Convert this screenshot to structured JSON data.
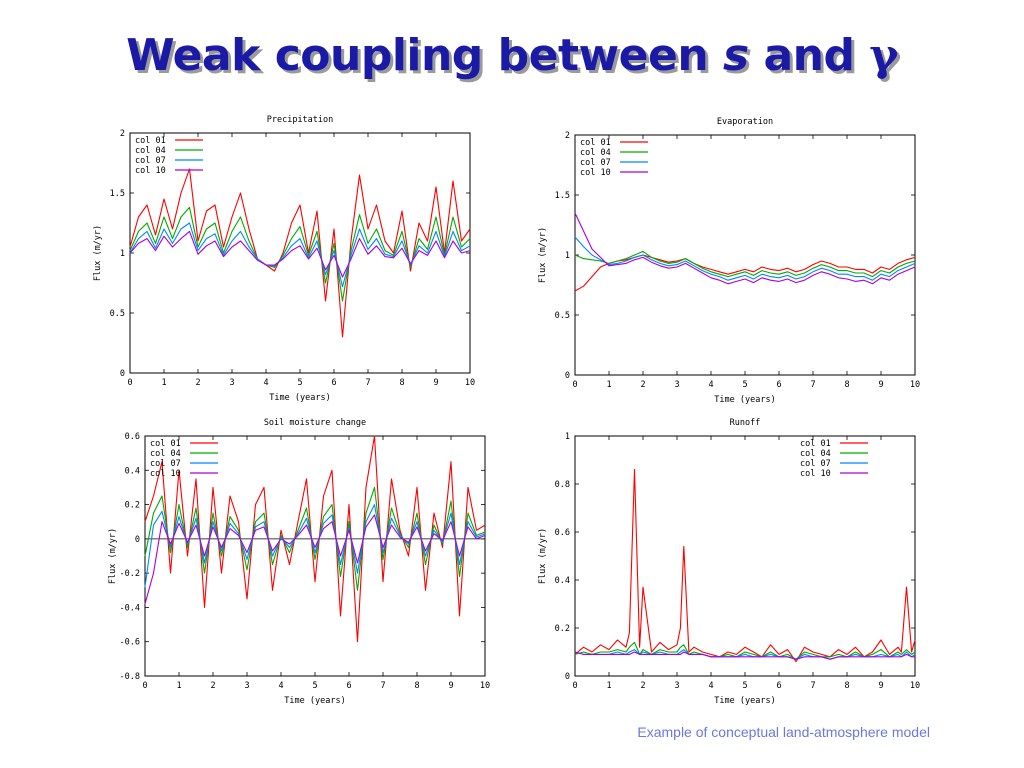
{
  "title": {
    "main": "Weak coupling between ",
    "symbol1": "s",
    "connector": " and ",
    "symbol2": "γ"
  },
  "caption": "Example of conceptual land-atmosphere model",
  "series_colors": {
    "col 01": "#ff0000",
    "col 04": "#00aa00",
    "col 07": "#0088ff",
    "col 10": "#aa00dd"
  },
  "chart_data": [
    {
      "type": "line",
      "title": "Precipitation",
      "xlabel": "Time (years)",
      "ylabel": "Flux (m/yr)",
      "xlim": [
        0,
        10
      ],
      "ylim": [
        0,
        2
      ],
      "xticks": [
        "0",
        "1",
        "2",
        "3",
        "4",
        "5",
        "6",
        "7",
        "8",
        "9",
        "10"
      ],
      "yticks": [
        "0",
        "0.5",
        "1",
        "1.5",
        "2"
      ],
      "legend_position": "top-left",
      "x": [
        0,
        0.25,
        0.5,
        0.75,
        1,
        1.25,
        1.5,
        1.75,
        2,
        2.25,
        2.5,
        2.75,
        3,
        3.25,
        3.5,
        3.75,
        4,
        4.25,
        4.5,
        4.75,
        5,
        5.25,
        5.5,
        5.75,
        6,
        6.25,
        6.5,
        6.75,
        7,
        7.25,
        7.5,
        7.75,
        8,
        8.25,
        8.5,
        8.75,
        9,
        9.25,
        9.5,
        9.75,
        10
      ],
      "series": [
        {
          "name": "col 01",
          "values": [
            1.05,
            1.3,
            1.4,
            1.15,
            1.45,
            1.2,
            1.5,
            1.7,
            1.1,
            1.35,
            1.4,
            1.05,
            1.3,
            1.5,
            1.2,
            0.95,
            0.9,
            0.85,
            1.0,
            1.25,
            1.4,
            1.0,
            1.35,
            0.6,
            1.2,
            0.3,
            1.1,
            1.65,
            1.2,
            1.4,
            1.1,
            1.0,
            1.35,
            0.85,
            1.25,
            1.1,
            1.55,
            1.0,
            1.6,
            1.1,
            1.2
          ]
        },
        {
          "name": "col 04",
          "values": [
            1.02,
            1.18,
            1.25,
            1.08,
            1.3,
            1.12,
            1.3,
            1.38,
            1.05,
            1.2,
            1.25,
            1.0,
            1.18,
            1.3,
            1.1,
            0.95,
            0.9,
            0.88,
            0.98,
            1.12,
            1.22,
            0.98,
            1.18,
            0.75,
            1.08,
            0.6,
            1.02,
            1.32,
            1.08,
            1.2,
            1.02,
            0.98,
            1.18,
            0.88,
            1.12,
            1.03,
            1.3,
            0.98,
            1.3,
            1.05,
            1.12
          ]
        },
        {
          "name": "col 07",
          "values": [
            1.0,
            1.12,
            1.18,
            1.04,
            1.2,
            1.08,
            1.2,
            1.25,
            1.02,
            1.12,
            1.16,
            0.98,
            1.1,
            1.18,
            1.05,
            0.95,
            0.9,
            0.89,
            0.96,
            1.06,
            1.12,
            0.96,
            1.1,
            0.82,
            1.02,
            0.72,
            0.98,
            1.2,
            1.03,
            1.12,
            0.99,
            0.97,
            1.1,
            0.9,
            1.06,
            1.0,
            1.18,
            0.97,
            1.18,
            1.02,
            1.06
          ]
        },
        {
          "name": "col 10",
          "values": [
            1.0,
            1.08,
            1.12,
            1.02,
            1.14,
            1.05,
            1.12,
            1.18,
            0.99,
            1.06,
            1.1,
            0.97,
            1.05,
            1.1,
            1.02,
            0.94,
            0.9,
            0.9,
            0.95,
            1.02,
            1.06,
            0.95,
            1.04,
            0.86,
            0.98,
            0.8,
            0.95,
            1.12,
            0.99,
            1.06,
            0.97,
            0.96,
            1.04,
            0.91,
            1.02,
            0.98,
            1.1,
            0.96,
            1.1,
            1.0,
            1.02
          ]
        }
      ]
    },
    {
      "type": "line",
      "title": "Evaporation",
      "xlabel": "Time (years)",
      "ylabel": "Flux (m/yr)",
      "xlim": [
        0,
        10
      ],
      "ylim": [
        0,
        2
      ],
      "xticks": [
        "0",
        "1",
        "2",
        "3",
        "4",
        "5",
        "6",
        "7",
        "8",
        "9",
        "10"
      ],
      "yticks": [
        "0",
        "0.5",
        "1",
        "1.5",
        "2"
      ],
      "legend_position": "top-left",
      "x": [
        0,
        0.25,
        0.5,
        0.75,
        1,
        1.25,
        1.5,
        1.75,
        2,
        2.25,
        2.5,
        2.75,
        3,
        3.25,
        3.5,
        3.75,
        4,
        4.25,
        4.5,
        4.75,
        5,
        5.25,
        5.5,
        5.75,
        6,
        6.25,
        6.5,
        6.75,
        7,
        7.25,
        7.5,
        7.75,
        8,
        8.25,
        8.5,
        8.75,
        9,
        9.25,
        9.5,
        9.75,
        10
      ],
      "series": [
        {
          "name": "col 01",
          "values": [
            0.7,
            0.74,
            0.82,
            0.9,
            0.93,
            0.95,
            0.96,
            0.98,
            1.0,
            0.98,
            0.96,
            0.94,
            0.95,
            0.97,
            0.93,
            0.9,
            0.88,
            0.86,
            0.84,
            0.86,
            0.88,
            0.86,
            0.9,
            0.88,
            0.87,
            0.89,
            0.86,
            0.88,
            0.92,
            0.95,
            0.93,
            0.9,
            0.9,
            0.88,
            0.88,
            0.85,
            0.9,
            0.88,
            0.93,
            0.96,
            0.98
          ]
        },
        {
          "name": "col 04",
          "values": [
            1.0,
            0.97,
            0.96,
            0.95,
            0.93,
            0.95,
            0.97,
            1.0,
            1.03,
            0.98,
            0.95,
            0.93,
            0.94,
            0.97,
            0.93,
            0.89,
            0.86,
            0.84,
            0.82,
            0.84,
            0.86,
            0.83,
            0.87,
            0.85,
            0.84,
            0.86,
            0.83,
            0.85,
            0.89,
            0.92,
            0.9,
            0.87,
            0.87,
            0.85,
            0.85,
            0.82,
            0.87,
            0.85,
            0.9,
            0.93,
            0.95
          ]
        },
        {
          "name": "col 07",
          "values": [
            1.15,
            1.07,
            1.0,
            0.96,
            0.92,
            0.93,
            0.95,
            0.98,
            1.0,
            0.96,
            0.93,
            0.91,
            0.92,
            0.95,
            0.91,
            0.87,
            0.84,
            0.82,
            0.79,
            0.81,
            0.83,
            0.8,
            0.84,
            0.82,
            0.81,
            0.83,
            0.8,
            0.82,
            0.86,
            0.89,
            0.87,
            0.84,
            0.84,
            0.82,
            0.82,
            0.79,
            0.84,
            0.82,
            0.87,
            0.9,
            0.93
          ]
        },
        {
          "name": "col 10",
          "values": [
            1.35,
            1.2,
            1.05,
            0.98,
            0.91,
            0.92,
            0.93,
            0.96,
            0.98,
            0.94,
            0.91,
            0.89,
            0.9,
            0.93,
            0.89,
            0.85,
            0.81,
            0.79,
            0.76,
            0.78,
            0.8,
            0.77,
            0.81,
            0.79,
            0.78,
            0.8,
            0.77,
            0.79,
            0.83,
            0.86,
            0.84,
            0.81,
            0.8,
            0.78,
            0.79,
            0.76,
            0.81,
            0.79,
            0.84,
            0.87,
            0.9
          ]
        }
      ]
    },
    {
      "type": "line",
      "title": "Soil moisture change",
      "xlabel": "Time (years)",
      "ylabel": "Flux (m/yr)",
      "xlim": [
        0,
        10
      ],
      "ylim": [
        -0.8,
        0.6
      ],
      "xticks": [
        "0",
        "1",
        "2",
        "3",
        "4",
        "5",
        "6",
        "7",
        "8",
        "9",
        "10"
      ],
      "yticks": [
        "-0.8",
        "-0.6",
        "-0.4",
        "-0.2",
        "0",
        "0.2",
        "0.4",
        "0.6"
      ],
      "legend_position": "top-left",
      "x": [
        0,
        0.25,
        0.5,
        0.75,
        1,
        1.25,
        1.5,
        1.75,
        2,
        2.25,
        2.5,
        2.75,
        3,
        3.25,
        3.5,
        3.75,
        4,
        4.25,
        4.5,
        4.75,
        5,
        5.25,
        5.5,
        5.75,
        6,
        6.25,
        6.5,
        6.75,
        7,
        7.25,
        7.5,
        7.75,
        8,
        8.25,
        8.5,
        8.75,
        9,
        9.25,
        9.5,
        9.75,
        10
      ],
      "series": [
        {
          "name": "col 01",
          "values": [
            0.1,
            0.25,
            0.45,
            -0.2,
            0.4,
            -0.1,
            0.35,
            -0.4,
            0.3,
            -0.2,
            0.25,
            0.1,
            -0.35,
            0.2,
            0.3,
            -0.3,
            0.05,
            -0.15,
            0.1,
            0.35,
            -0.25,
            0.25,
            0.4,
            -0.45,
            0.2,
            -0.6,
            0.3,
            0.6,
            -0.25,
            0.35,
            0.05,
            -0.1,
            0.3,
            -0.3,
            0.15,
            -0.05,
            0.45,
            -0.45,
            0.3,
            0.05,
            0.08
          ]
        },
        {
          "name": "col 04",
          "values": [
            -0.1,
            0.15,
            0.25,
            -0.08,
            0.2,
            -0.05,
            0.18,
            -0.2,
            0.15,
            -0.1,
            0.13,
            0.05,
            -0.18,
            0.1,
            0.15,
            -0.15,
            0.02,
            -0.08,
            0.05,
            0.18,
            -0.12,
            0.13,
            0.2,
            -0.22,
            0.1,
            -0.3,
            0.15,
            0.3,
            -0.12,
            0.18,
            0.03,
            -0.05,
            0.15,
            -0.15,
            0.08,
            -0.03,
            0.22,
            -0.22,
            0.15,
            0.02,
            0.04
          ]
        },
        {
          "name": "col 07",
          "values": [
            -0.28,
            0.08,
            0.16,
            -0.05,
            0.13,
            -0.03,
            0.12,
            -0.14,
            0.1,
            -0.07,
            0.09,
            0.03,
            -0.12,
            0.07,
            0.1,
            -0.1,
            0.01,
            -0.05,
            0.03,
            0.12,
            -0.08,
            0.09,
            0.14,
            -0.15,
            0.07,
            -0.2,
            0.1,
            0.2,
            -0.08,
            0.12,
            0.02,
            -0.03,
            0.1,
            -0.1,
            0.05,
            -0.02,
            0.15,
            -0.15,
            0.1,
            0.01,
            0.03
          ]
        },
        {
          "name": "col 10",
          "values": [
            -0.38,
            -0.2,
            0.1,
            -0.03,
            0.09,
            -0.02,
            0.08,
            -0.1,
            0.07,
            -0.05,
            0.06,
            0.02,
            -0.08,
            0.05,
            0.07,
            -0.07,
            0.0,
            -0.03,
            0.02,
            0.08,
            -0.05,
            0.06,
            0.1,
            -0.1,
            0.05,
            -0.14,
            0.07,
            0.14,
            -0.05,
            0.08,
            0.01,
            -0.02,
            0.07,
            -0.07,
            0.03,
            -0.01,
            0.1,
            -0.1,
            0.07,
            0.0,
            0.02
          ]
        }
      ]
    },
    {
      "type": "line",
      "title": "Runoff",
      "xlabel": "Time (years)",
      "ylabel": "Flux (m/yr)",
      "xlim": [
        0,
        10
      ],
      "ylim": [
        0,
        1
      ],
      "xticks": [
        "0",
        "1",
        "2",
        "3",
        "4",
        "5",
        "6",
        "7",
        "8",
        "9",
        "10"
      ],
      "yticks": [
        "0",
        "0.2",
        "0.4",
        "0.6",
        "0.8",
        "1"
      ],
      "legend_position": "top-right",
      "x": [
        0,
        0.25,
        0.5,
        0.75,
        1,
        1.25,
        1.5,
        1.6,
        1.75,
        1.9,
        2,
        2.25,
        2.5,
        2.75,
        3,
        3.1,
        3.2,
        3.35,
        3.5,
        3.75,
        4,
        4.25,
        4.5,
        4.75,
        5,
        5.25,
        5.5,
        5.75,
        6,
        6.25,
        6.5,
        6.75,
        7,
        7.25,
        7.5,
        7.75,
        8,
        8.25,
        8.5,
        8.75,
        9,
        9.25,
        9.5,
        9.6,
        9.75,
        9.9,
        10
      ],
      "series": [
        {
          "name": "col 01",
          "values": [
            0.09,
            0.12,
            0.1,
            0.13,
            0.11,
            0.15,
            0.12,
            0.18,
            0.86,
            0.12,
            0.37,
            0.1,
            0.14,
            0.11,
            0.13,
            0.2,
            0.54,
            0.1,
            0.12,
            0.1,
            0.09,
            0.08,
            0.1,
            0.09,
            0.12,
            0.1,
            0.08,
            0.13,
            0.09,
            0.11,
            0.06,
            0.12,
            0.1,
            0.09,
            0.08,
            0.11,
            0.09,
            0.12,
            0.08,
            0.1,
            0.15,
            0.09,
            0.12,
            0.1,
            0.37,
            0.1,
            0.15
          ]
        },
        {
          "name": "col 04",
          "values": [
            0.09,
            0.1,
            0.09,
            0.1,
            0.1,
            0.11,
            0.1,
            0.12,
            0.14,
            0.09,
            0.11,
            0.09,
            0.11,
            0.1,
            0.1,
            0.12,
            0.13,
            0.09,
            0.1,
            0.09,
            0.08,
            0.08,
            0.09,
            0.08,
            0.1,
            0.09,
            0.08,
            0.1,
            0.08,
            0.09,
            0.07,
            0.1,
            0.09,
            0.08,
            0.08,
            0.09,
            0.08,
            0.1,
            0.08,
            0.09,
            0.11,
            0.08,
            0.1,
            0.09,
            0.11,
            0.09,
            0.1
          ]
        },
        {
          "name": "col 07",
          "values": [
            0.1,
            0.09,
            0.09,
            0.09,
            0.09,
            0.1,
            0.09,
            0.1,
            0.11,
            0.09,
            0.1,
            0.09,
            0.1,
            0.09,
            0.09,
            0.1,
            0.11,
            0.09,
            0.09,
            0.09,
            0.08,
            0.08,
            0.08,
            0.08,
            0.09,
            0.08,
            0.08,
            0.09,
            0.08,
            0.08,
            0.07,
            0.09,
            0.08,
            0.08,
            0.07,
            0.08,
            0.08,
            0.09,
            0.08,
            0.08,
            0.09,
            0.08,
            0.09,
            0.08,
            0.1,
            0.08,
            0.09
          ]
        },
        {
          "name": "col 10",
          "values": [
            0.1,
            0.09,
            0.09,
            0.09,
            0.09,
            0.09,
            0.09,
            0.09,
            0.1,
            0.09,
            0.09,
            0.09,
            0.09,
            0.09,
            0.09,
            0.09,
            0.1,
            0.09,
            0.09,
            0.09,
            0.08,
            0.08,
            0.08,
            0.08,
            0.08,
            0.08,
            0.08,
            0.08,
            0.08,
            0.08,
            0.07,
            0.08,
            0.08,
            0.08,
            0.07,
            0.08,
            0.08,
            0.08,
            0.08,
            0.08,
            0.08,
            0.08,
            0.08,
            0.08,
            0.09,
            0.08,
            0.08
          ]
        }
      ]
    }
  ]
}
